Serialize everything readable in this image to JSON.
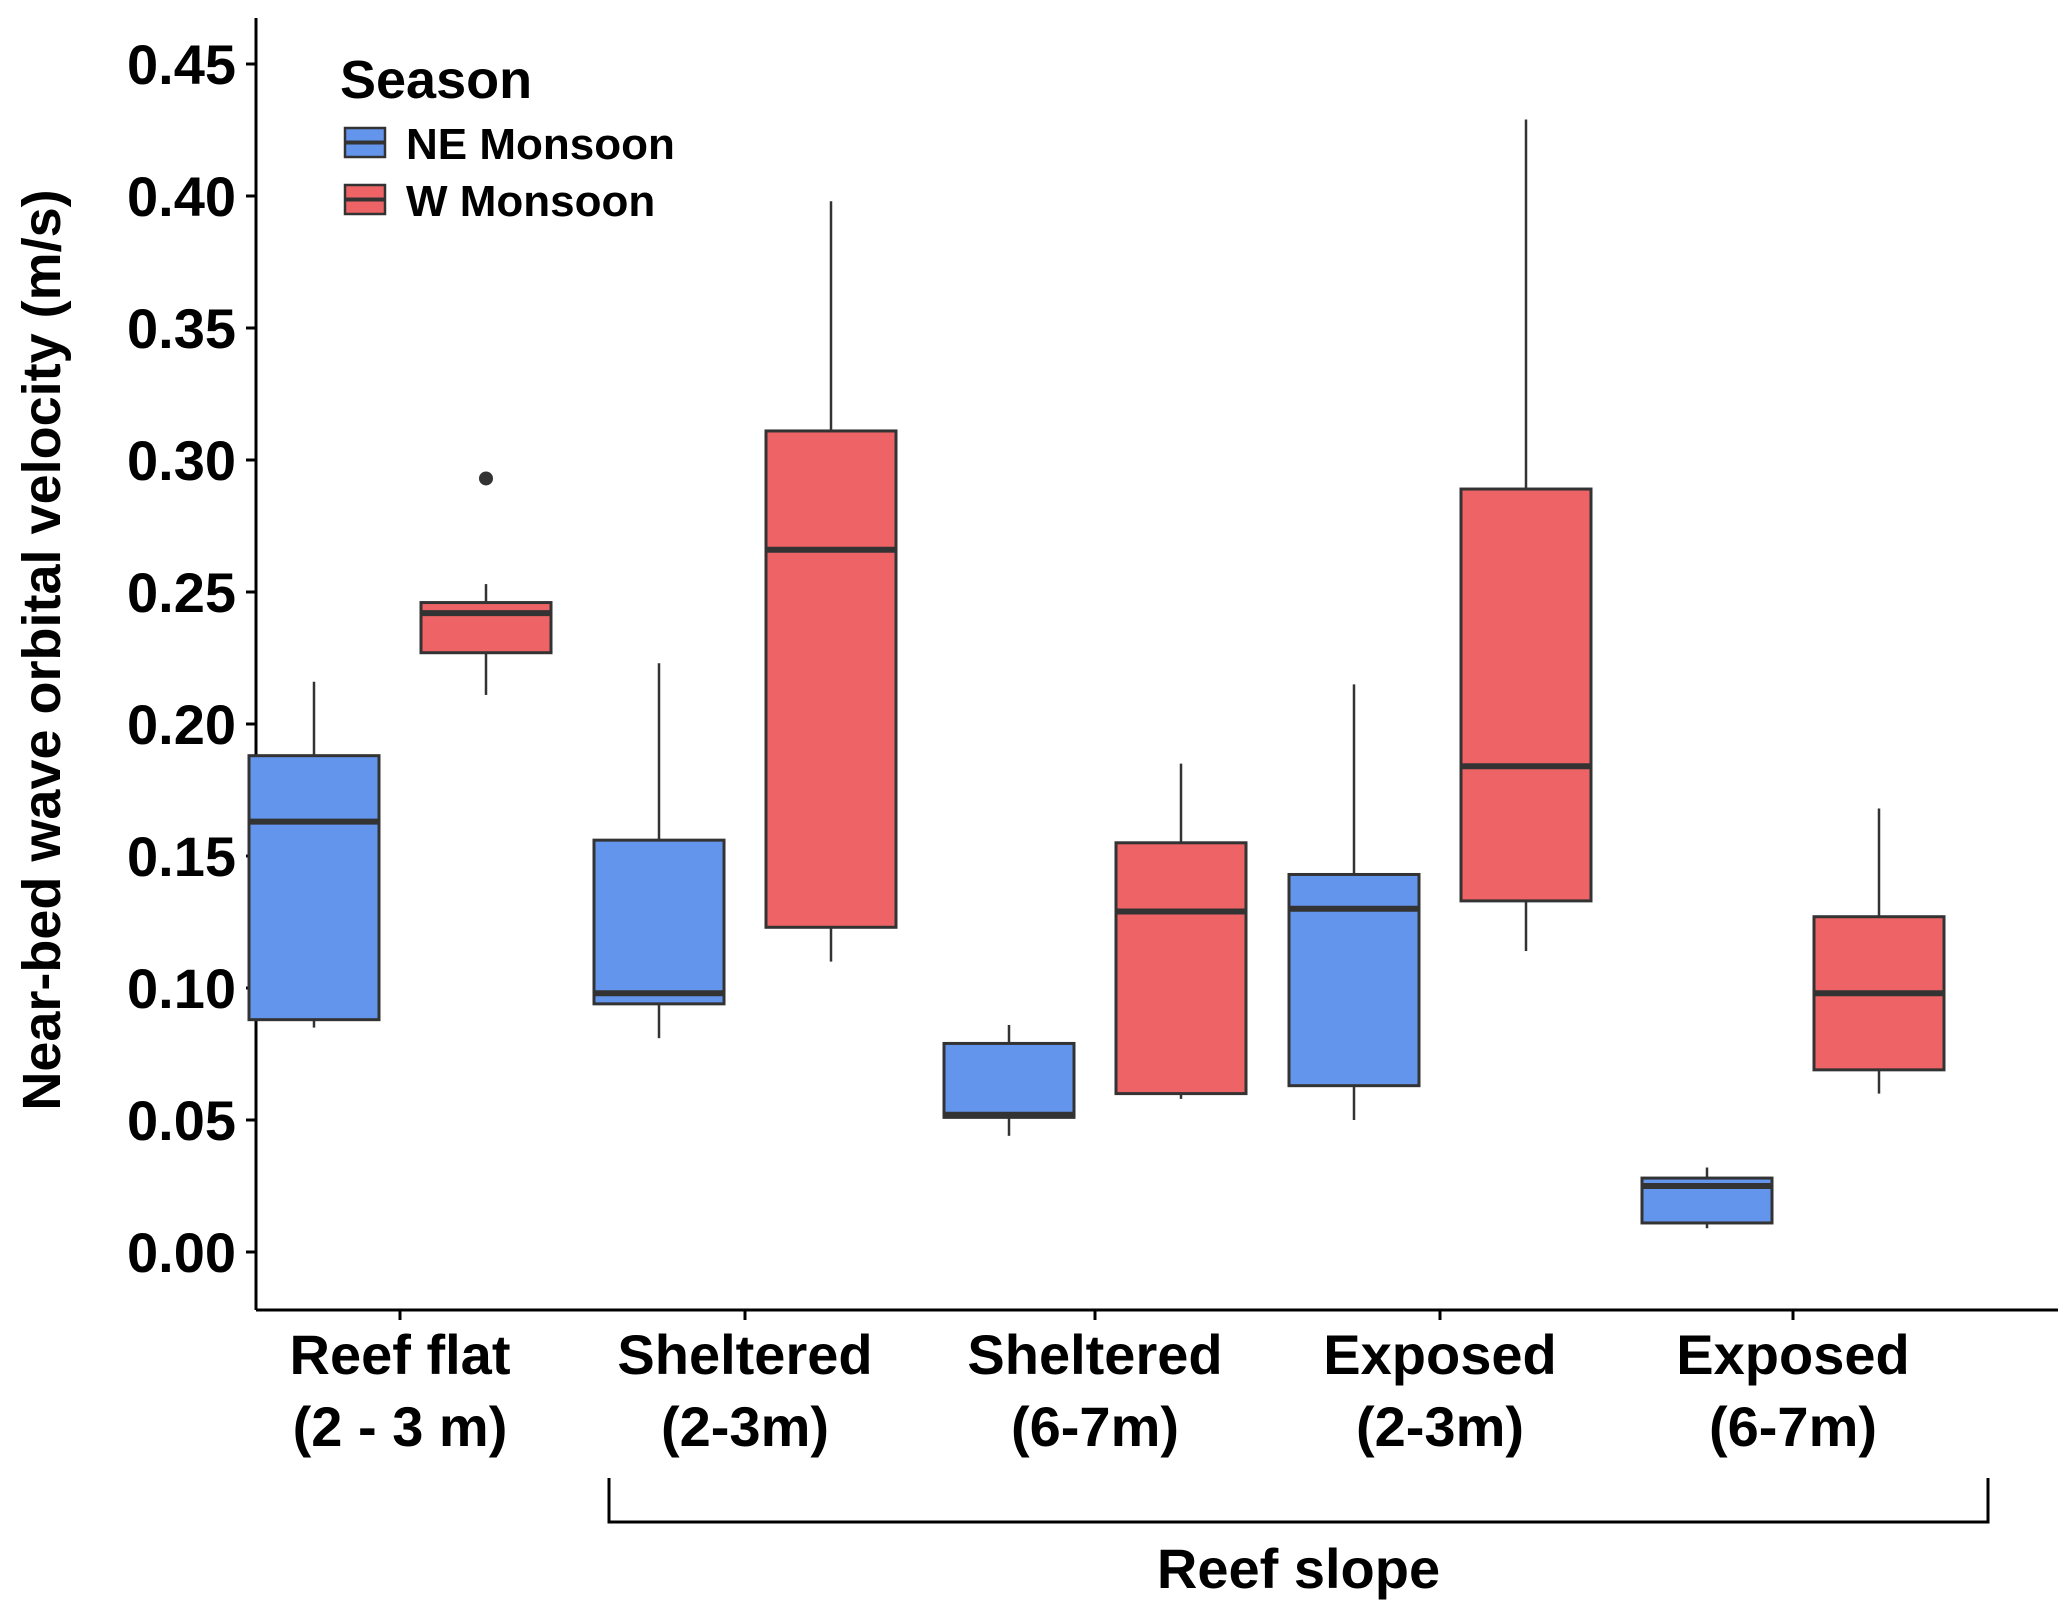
{
  "chart_data": {
    "type": "boxplot",
    "ylabel": "Near-bed wave orbital velocity (m/s)",
    "xlabel": "",
    "ylim": [
      -0.02,
      0.47
    ],
    "yticks": [
      "0.00",
      "0.05",
      "0.10",
      "0.15",
      "0.20",
      "0.25",
      "0.30",
      "0.35",
      "0.40",
      "0.45"
    ],
    "grid": false,
    "legend": {
      "title": "Season",
      "position": "top-left",
      "entries": [
        {
          "name": "NE Monsoon",
          "color": "#6495ED"
        },
        {
          "name": "W Monsoon",
          "color": "#EE6466"
        }
      ]
    },
    "categories": [
      {
        "line1": "Reef flat",
        "line2": "(2 - 3 m)"
      },
      {
        "line1": "Sheltered",
        "line2": "(2-3m)"
      },
      {
        "line1": "Sheltered",
        "line2": "(6-7m)"
      },
      {
        "line1": "Exposed",
        "line2": "(2-3m)"
      },
      {
        "line1": "Exposed",
        "line2": "(6-7m)"
      }
    ],
    "group_bracket": {
      "label": "Reef slope",
      "from_category": 1,
      "to_category": 4
    },
    "series": [
      {
        "name": "NE Monsoon",
        "color": "#6495ED",
        "boxes": [
          {
            "min": 0.085,
            "q1": 0.088,
            "median": 0.163,
            "q3": 0.188,
            "max": 0.216,
            "outliers": []
          },
          {
            "min": 0.081,
            "q1": 0.094,
            "median": 0.098,
            "q3": 0.156,
            "max": 0.223,
            "outliers": []
          },
          {
            "min": 0.044,
            "q1": 0.051,
            "median": 0.052,
            "q3": 0.079,
            "max": 0.086,
            "outliers": []
          },
          {
            "min": 0.05,
            "q1": 0.063,
            "median": 0.13,
            "q3": 0.143,
            "max": 0.215,
            "outliers": []
          },
          {
            "min": 0.009,
            "q1": 0.011,
            "median": 0.025,
            "q3": 0.028,
            "max": 0.032,
            "outliers": []
          }
        ]
      },
      {
        "name": "W Monsoon",
        "color": "#EE6466",
        "boxes": [
          {
            "min": 0.211,
            "q1": 0.227,
            "median": 0.242,
            "q3": 0.246,
            "max": 0.253,
            "outliers": [
              0.293
            ]
          },
          {
            "min": 0.11,
            "q1": 0.123,
            "median": 0.266,
            "q3": 0.311,
            "max": 0.398,
            "outliers": []
          },
          {
            "min": 0.058,
            "q1": 0.06,
            "median": 0.129,
            "q3": 0.155,
            "max": 0.185,
            "outliers": []
          },
          {
            "min": 0.114,
            "q1": 0.133,
            "median": 0.184,
            "q3": 0.289,
            "max": 0.429,
            "outliers": []
          },
          {
            "min": 0.06,
            "q1": 0.069,
            "median": 0.098,
            "q3": 0.127,
            "max": 0.168,
            "outliers": []
          }
        ]
      }
    ]
  }
}
